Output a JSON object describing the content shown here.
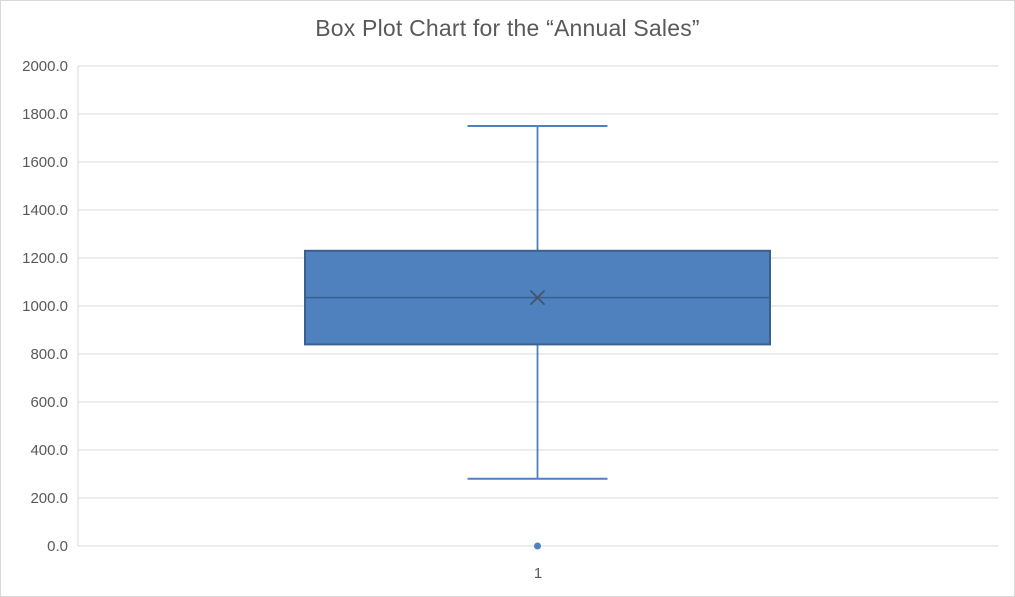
{
  "window": {
    "background": "#ffffff",
    "border_color": "#d9d9d9"
  },
  "chart": {
    "colors": {
      "box_fill": "#4e81bd",
      "box_stroke": "#38618f",
      "median_line": "#38618f",
      "whisker": "#4e81bd",
      "mean_marker": "#44546a",
      "outlier": "#4e81bd",
      "gridline": "#d9d9d9",
      "axis_line": "#d9d9d9",
      "text": "#595959"
    }
  },
  "chart_data": {
    "type": "box",
    "title": "Box Plot Chart for the “Annual Sales”",
    "categories": [
      "1"
    ],
    "series": [
      {
        "category": "1",
        "whisker_min": 280,
        "q1": 840,
        "median": 1035,
        "mean": 1035,
        "q3": 1230,
        "whisker_max": 1750,
        "outliers": [
          0
        ]
      }
    ],
    "ylim": [
      0,
      2000
    ],
    "ytick_step": 200,
    "ytick_labels": [
      "0.0",
      "200.0",
      "400.0",
      "600.0",
      "800.0",
      "1000.0",
      "1200.0",
      "1400.0",
      "1600.0",
      "1800.0",
      "2000.0"
    ],
    "xlabel": "",
    "ylabel": "",
    "grid": true,
    "legend": "none"
  }
}
